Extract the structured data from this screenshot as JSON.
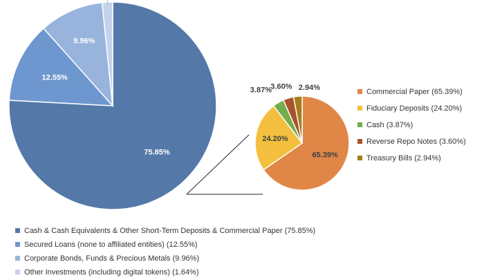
{
  "chart_data": [
    {
      "type": "pie",
      "legend_position": "bottom",
      "slices": [
        {
          "label": "Cash & Cash Equivalents & Other Short-Term Deposits & Commercial Paper (75.85%)",
          "value": 75.85,
          "data_label": "75.85%",
          "color": "#5479a8"
        },
        {
          "label": "Secured Loans (none to affiliated entities) (12.55%)",
          "value": 12.55,
          "data_label": "12.55%",
          "color": "#6d97ce"
        },
        {
          "label": "Corporate Bonds, Funds & Precious Metals (9.96%)",
          "value": 9.96,
          "data_label": "9.96%",
          "color": "#98b4dc"
        },
        {
          "label": "Other Investments (including digital tokens) (1.64%)",
          "value": 1.64,
          "data_label": "1.64%",
          "color": "#c3d3ea"
        }
      ]
    },
    {
      "type": "pie",
      "legend_position": "right",
      "slices": [
        {
          "label": "Commercial Paper (65.39%)",
          "value": 65.39,
          "data_label": "65.39%",
          "color": "#e08748"
        },
        {
          "label": "Fiduciary Deposits (24.20%)",
          "value": 24.2,
          "data_label": "24.20%",
          "color": "#f4bf3f"
        },
        {
          "label": "Cash (3.87%)",
          "value": 3.87,
          "data_label": "3.87%",
          "color": "#74ad4c"
        },
        {
          "label": "Reverse Repo Notes (3.60%)",
          "value": 3.6,
          "data_label": "3.60%",
          "color": "#a9532a"
        },
        {
          "label": "Treasury Bills (2.94%)",
          "value": 2.94,
          "data_label": "2.94%",
          "color": "#a57d1b"
        }
      ]
    }
  ]
}
